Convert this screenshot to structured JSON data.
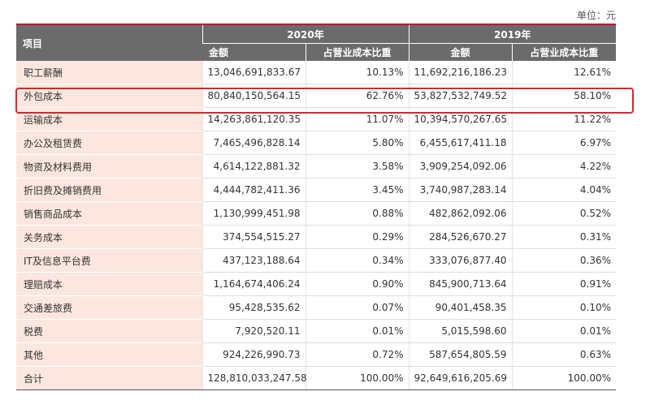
{
  "unit_label": "单位：元",
  "header": {
    "item_label": "项目",
    "years": [
      "2020年",
      "2019年"
    ],
    "amount_label": "金额",
    "ratio_label": "占营业成本比重"
  },
  "rows": [
    {
      "item": "职工薪酬",
      "amt2020": "13,046,691,833.67",
      "pct2020": "10.13%",
      "amt2019": "11,692,216,186.23",
      "pct2019": "12.61%"
    },
    {
      "item": "外包成本",
      "amt2020": "80,840,150,564.15",
      "pct2020": "62.76%",
      "amt2019": "53,827,532,749.52",
      "pct2019": "58.10%"
    },
    {
      "item": "运输成本",
      "amt2020": "14,263,861,120.35",
      "pct2020": "11.07%",
      "amt2019": "10,394,570,267.65",
      "pct2019": "11.22%"
    },
    {
      "item": "办公及租赁费",
      "amt2020": "7,465,496,828.14",
      "pct2020": "5.80%",
      "amt2019": "6,455,617,411.18",
      "pct2019": "6.97%"
    },
    {
      "item": "物资及材料费用",
      "amt2020": "4,614,122,881.32",
      "pct2020": "3.58%",
      "amt2019": "3,909,254,092.06",
      "pct2019": "4.22%"
    },
    {
      "item": "折旧费及摊销费用",
      "amt2020": "4,444,782,411.36",
      "pct2020": "3.45%",
      "amt2019": "3,740,987,283.14",
      "pct2019": "4.04%"
    },
    {
      "item": "销售商品成本",
      "amt2020": "1,130,999,451.98",
      "pct2020": "0.88%",
      "amt2019": "482,862,092.06",
      "pct2019": "0.52%"
    },
    {
      "item": "关务成本",
      "amt2020": "374,554,515.27",
      "pct2020": "0.29%",
      "amt2019": "284,526,670.27",
      "pct2019": "0.31%"
    },
    {
      "item": "IT及信息平台费",
      "amt2020": "437,123,188.64",
      "pct2020": "0.34%",
      "amt2019": "333,076,877.40",
      "pct2019": "0.36%"
    },
    {
      "item": "理赔成本",
      "amt2020": "1,164,674,406.24",
      "pct2020": "0.90%",
      "amt2019": "845,900,713.64",
      "pct2019": "0.91%"
    },
    {
      "item": "交通差旅费",
      "amt2020": "95,428,535.62",
      "pct2020": "0.07%",
      "amt2019": "90,401,458.35",
      "pct2019": "0.10%"
    },
    {
      "item": "税费",
      "amt2020": "7,920,520.11",
      "pct2020": "0.01%",
      "amt2019": "5,015,598.60",
      "pct2019": "0.01%"
    },
    {
      "item": "其他",
      "amt2020": "924,226,990.73",
      "pct2020": "0.72%",
      "amt2019": "587,654,805.59",
      "pct2019": "0.63%"
    },
    {
      "item": "合计",
      "amt2020": "128,810,033,247.58",
      "pct2020": "100.00%",
      "amt2019": "92,649,616,205.69",
      "pct2019": "100.00%"
    }
  ],
  "colors": {
    "header_bg": "#6b6b6b",
    "item_bg": "#fbe7df",
    "accent_red": "#c8102e",
    "highlight_box": "#d9262c"
  }
}
